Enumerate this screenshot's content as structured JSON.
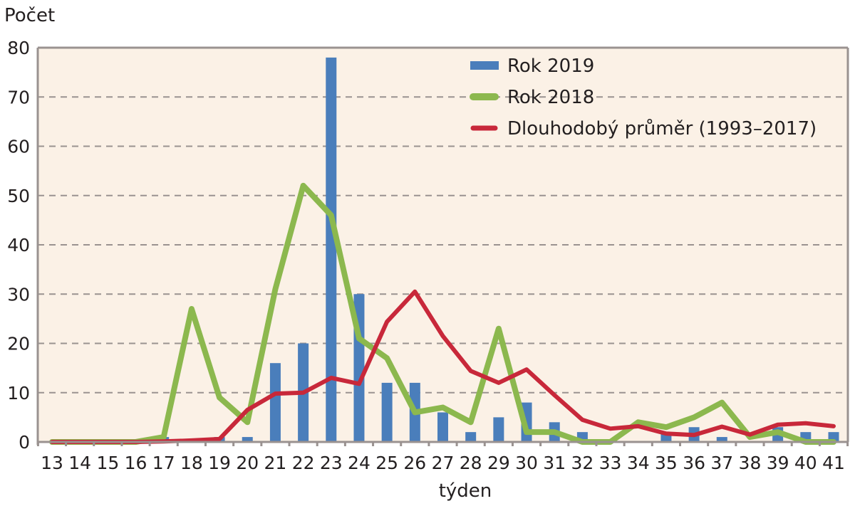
{
  "chart_data": {
    "type": "bar+line",
    "title": "",
    "ylabel": "Počet",
    "xlabel": "týden",
    "ylim": [
      0,
      80
    ],
    "yticks": [
      0,
      10,
      20,
      30,
      40,
      50,
      60,
      70,
      80
    ],
    "grid": true,
    "legend_position": "top-right",
    "categories": [
      "13",
      "14",
      "15",
      "16",
      "17",
      "18",
      "19",
      "20",
      "21",
      "22",
      "23",
      "24",
      "25",
      "26",
      "27",
      "28",
      "29",
      "30",
      "31",
      "32",
      "33",
      "34",
      "35",
      "36",
      "37",
      "38",
      "39",
      "40",
      "41"
    ],
    "series": [
      {
        "name": "Rok 2019",
        "kind": "bar",
        "color": "#4a7ebb",
        "values": [
          0,
          0,
          0,
          0,
          1,
          0,
          1,
          1,
          16,
          20,
          78,
          30,
          12,
          12,
          6,
          2,
          5,
          8,
          4,
          2,
          0,
          0,
          2,
          3,
          1,
          0,
          3,
          2,
          2
        ]
      },
      {
        "name": "Rok 2018",
        "kind": "line",
        "color": "#8cb84e",
        "values": [
          0,
          0,
          0,
          0,
          1,
          27,
          9,
          4,
          31,
          52,
          46,
          21,
          17,
          6,
          7,
          4,
          23,
          2,
          2,
          0,
          0,
          4,
          3,
          5,
          8,
          1,
          2,
          0,
          0
        ]
      },
      {
        "name": "Dlouhodobý průměr (1993–2017)",
        "kind": "line",
        "color": "#c8283a",
        "values": [
          0,
          0,
          0,
          0,
          0.1,
          0.3,
          0.6,
          6.5,
          9.8,
          10,
          13,
          11.8,
          24.4,
          30.5,
          21.5,
          14.4,
          12,
          14.7,
          9.5,
          4.5,
          2.7,
          3.2,
          1.7,
          1.4,
          3.1,
          1.5,
          3.5,
          3.8,
          3.2
        ]
      }
    ]
  }
}
